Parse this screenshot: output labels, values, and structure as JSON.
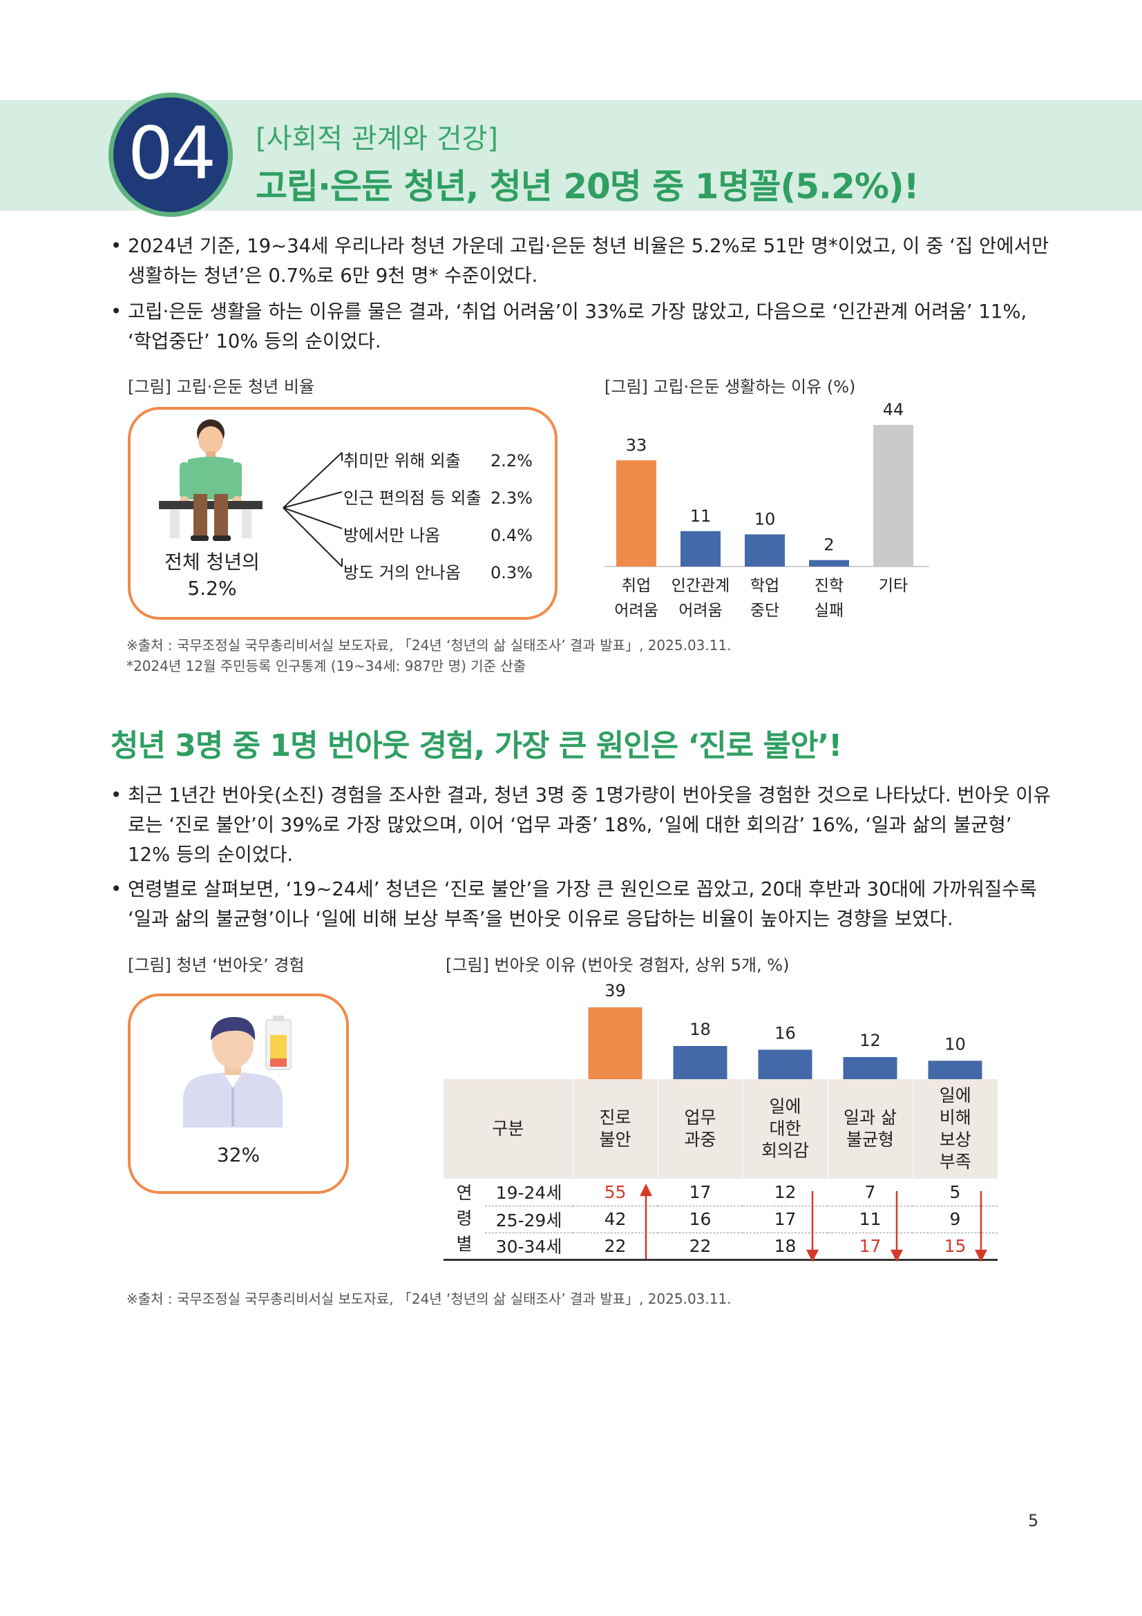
{
  "header": {
    "number": "04",
    "category": "[사회적 관계와 건강]",
    "title": "고립·은둔 청년, 청년 20명 중 1명꼴(5.2%)!"
  },
  "section1": {
    "bullets": [
      "2024년 기준, 19~34세 우리나라 청년 가운데 고립·은둔 청년 비율은 5.2%로 51만 명*이었고, 이 중 ‘집 안에서만 생활하는 청년’은 0.7%로 6만 9천 명* 수준이었다.",
      "고립·은둔 생활을 하는 이유를 물은 결과, ‘취업 어려움’이 33%로 가장 많았고, 다음으로 ‘인간관계 어려움’ 11%, ‘학업중단’ 10% 등의 순이었다."
    ],
    "fig1": {
      "caption": "[그림] 고립·은둔 청년 비율",
      "total_label_1": "전체 청년의",
      "total_label_2": "5.2%",
      "items": [
        {
          "label": "취미만 위해 외출",
          "value": "2.2%"
        },
        {
          "label": "인근 편의점 등 외출",
          "value": "2.3%"
        },
        {
          "label": "방에서만 나옴",
          "value": "0.4%"
        },
        {
          "label": "방도 거의 안나옴",
          "value": "0.3%"
        }
      ]
    },
    "fig2": {
      "caption": "[그림] 고립·은둔 생활하는 이유 (%)"
    },
    "source": "※출처 : 국무조정실 국무총리비서실 보도자료, 「24년 ‘청년의 삶 실태조사’ 결과 발표」, 2025.03.11.",
    "note": "*2024년 12월 주민등록 인구통계 (19~34세: 987만 명) 기준 산출"
  },
  "section2": {
    "title": "청년 3명 중 1명 번아웃 경험, 가장 큰 원인은 ‘진로 불안’!",
    "bullets": [
      "최근 1년간 번아웃(소진) 경험을 조사한 결과, 청년 3명 중 1명가량이 번아웃을 경험한 것으로 나타났다. 번아웃 이유로는 ‘진로 불안’이 39%로 가장 많았으며, 이어 ‘업무 과중’ 18%, ‘일에 대한 회의감’ 16%, ‘일과 삶의 불균형’ 12% 등의 순이었다.",
      "연령별로 살펴보면, ‘19~24세’ 청년은 ‘진로 불안’을 가장 큰 원인으로 꼽았고, 20대 후반과 30대에 가까워질수록 ‘일과 삶의 불균형’이나 ‘일에 비해 보상 부족’을 번아웃 이유로 응답하는 비율이 높아지는 경향을 보였다."
    ],
    "fig3": {
      "caption": "[그림] 청년 ‘번아웃’ 경험",
      "value": "32%"
    },
    "fig4": {
      "caption": "[그림] 번아웃 이유 (번아웃 경험자, 상위 5개, %)",
      "table": {
        "header_label": "구분",
        "columns": [
          "진로\n불안",
          "업무\n과중",
          "일에\n대한\n회의감",
          "일과 삶\n불균형",
          "일에\n비해\n보상\n부족"
        ],
        "group_label": "연\n령\n별",
        "rows": [
          {
            "age": "19-24세",
            "values": [
              "55",
              "17",
              "12",
              "7",
              "5"
            ]
          },
          {
            "age": "25-29세",
            "values": [
              "42",
              "16",
              "17",
              "11",
              "9"
            ]
          },
          {
            "age": "30-34세",
            "values": [
              "22",
              "22",
              "18",
              "17",
              "15"
            ]
          }
        ]
      }
    },
    "source": "※출처 : 국무조정실 국무총리비서실 보도자료, 「24년 ‘청년의 삶 실태조사’ 결과 발표」, 2025.03.11."
  },
  "page_number": "5",
  "colors": {
    "orange": "#f08a4b",
    "blue": "#4469a8",
    "gray": "#c9c9c9",
    "green": "#2f9f62",
    "navy": "#1f3a78",
    "red_highlight": "#d43a2a"
  },
  "chart_data": [
    {
      "type": "bar",
      "title": "[그림] 고립·은둔 생활하는 이유 (%)",
      "categories": [
        "취업\n어려움",
        "인간관계\n어려움",
        "학업\n중단",
        "진학\n실패",
        "기타"
      ],
      "values": [
        33,
        11,
        10,
        2,
        44
      ],
      "colors": [
        "#f08a4b",
        "#4469a8",
        "#4469a8",
        "#4469a8",
        "#c9c9c9"
      ],
      "ylim": [
        0,
        44
      ]
    },
    {
      "type": "bar",
      "title": "[그림] 번아웃 이유 (번아웃 경험자, 상위 5개, %)",
      "categories": [
        "진로 불안",
        "업무 과중",
        "일에 대한 회의감",
        "일과 삶 불균형",
        "일에 비해 보상 부족"
      ],
      "values": [
        39,
        18,
        16,
        12,
        10
      ],
      "colors": [
        "#f08a4b",
        "#4469a8",
        "#4469a8",
        "#4469a8",
        "#4469a8"
      ],
      "ylim": [
        0,
        39
      ]
    }
  ]
}
